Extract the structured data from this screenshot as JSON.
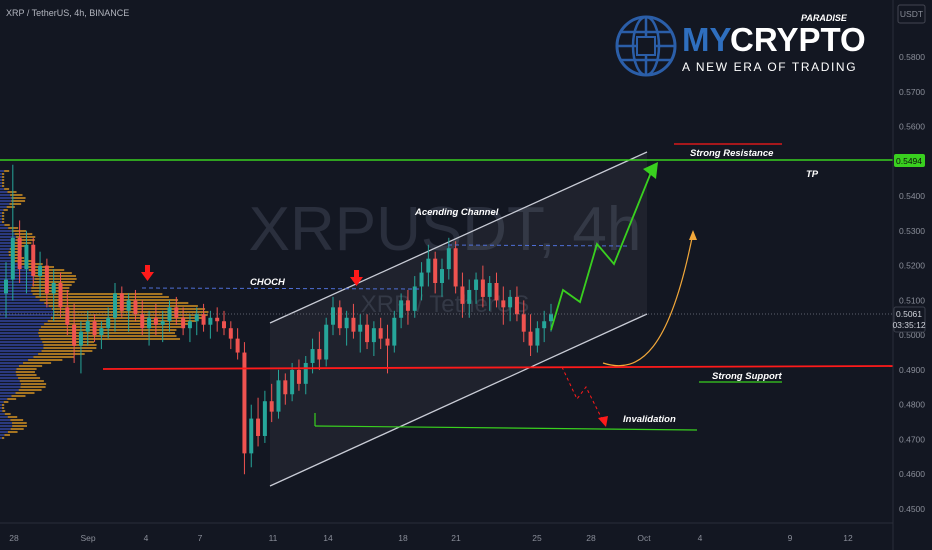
{
  "header": {
    "symbol_line": "XRP / TetherUS, 4h, BINANCE"
  },
  "watermark": {
    "big": "XRPUSDT, 4h",
    "small": "XRP / TetherUS"
  },
  "logo": {
    "top": "PARADISE",
    "my": "MY",
    "crypto": "CRYPTO",
    "tagline": "A NEW ERA OF TRADING"
  },
  "price_axis": {
    "currency": "USDT",
    "ticks": [
      "0.5800",
      "0.5700",
      "0.5600",
      "0.5400",
      "0.5300",
      "0.5200",
      "0.5100",
      "0.5000",
      "0.4900",
      "0.4800",
      "0.4700",
      "0.4600",
      "0.4500"
    ]
  },
  "last_price": {
    "value": "0.5061",
    "countdown": "03:35:12"
  },
  "tp_price": {
    "value": "0.5494"
  },
  "time_axis": {
    "ticks": [
      "28",
      "Sep",
      "4",
      "7",
      "11",
      "14",
      "18",
      "21",
      "25",
      "28",
      "Oct",
      "4",
      "9",
      "12"
    ]
  },
  "annotations": {
    "choch": "CHOCH",
    "channel": "Acending Channel",
    "resistance": "Strong Resistance",
    "tp": "TP",
    "support": "Strong Support",
    "invalidation": "Invalidation"
  },
  "colors": {
    "up": "#26a69a",
    "down": "#ef5350",
    "green_line": "#39d01f",
    "red_line": "#ff1a1a",
    "orange": "#f2a83a",
    "bg": "#131722"
  },
  "chart_data": {
    "type": "candlestick",
    "symbol": "XRP / TetherUS",
    "interval": "4h",
    "exchange": "BINANCE",
    "ylim": [
      0.445,
      0.59
    ],
    "levels": {
      "strong_resistance": 0.5494,
      "strong_support": 0.491,
      "last_price": 0.5061,
      "invalidation": 0.474
    },
    "ohlc": [
      [
        0.512,
        0.521,
        0.505,
        0.516
      ],
      [
        0.516,
        0.549,
        0.51,
        0.528
      ],
      [
        0.528,
        0.533,
        0.515,
        0.519
      ],
      [
        0.519,
        0.53,
        0.512,
        0.526
      ],
      [
        0.526,
        0.528,
        0.514,
        0.517
      ],
      [
        0.517,
        0.524,
        0.511,
        0.52
      ],
      [
        0.52,
        0.522,
        0.508,
        0.512
      ],
      [
        0.512,
        0.519,
        0.504,
        0.515
      ],
      [
        0.515,
        0.518,
        0.505,
        0.508
      ],
      [
        0.508,
        0.513,
        0.5,
        0.503
      ],
      [
        0.503,
        0.509,
        0.492,
        0.497
      ],
      [
        0.497,
        0.504,
        0.489,
        0.501
      ],
      [
        0.501,
        0.507,
        0.497,
        0.504
      ],
      [
        0.504,
        0.506,
        0.498,
        0.5
      ],
      [
        0.5,
        0.504,
        0.496,
        0.502
      ],
      [
        0.502,
        0.508,
        0.499,
        0.505
      ],
      [
        0.505,
        0.515,
        0.501,
        0.512
      ],
      [
        0.512,
        0.514,
        0.505,
        0.507
      ],
      [
        0.507,
        0.512,
        0.501,
        0.51
      ],
      [
        0.51,
        0.513,
        0.504,
        0.506
      ],
      [
        0.506,
        0.51,
        0.5,
        0.502
      ],
      [
        0.502,
        0.507,
        0.497,
        0.505
      ],
      [
        0.505,
        0.509,
        0.5,
        0.503
      ],
      [
        0.503,
        0.507,
        0.498,
        0.504
      ],
      [
        0.504,
        0.51,
        0.501,
        0.508
      ],
      [
        0.508,
        0.511,
        0.503,
        0.505
      ],
      [
        0.505,
        0.508,
        0.5,
        0.502
      ],
      [
        0.502,
        0.506,
        0.498,
        0.504
      ],
      [
        0.504,
        0.508,
        0.5,
        0.506
      ],
      [
        0.506,
        0.509,
        0.501,
        0.503
      ],
      [
        0.503,
        0.507,
        0.499,
        0.505
      ],
      [
        0.505,
        0.508,
        0.501,
        0.504
      ],
      [
        0.504,
        0.507,
        0.5,
        0.502
      ],
      [
        0.502,
        0.504,
        0.496,
        0.499
      ],
      [
        0.499,
        0.502,
        0.493,
        0.495
      ],
      [
        0.495,
        0.498,
        0.46,
        0.466
      ],
      [
        0.466,
        0.48,
        0.462,
        0.476
      ],
      [
        0.476,
        0.482,
        0.468,
        0.471
      ],
      [
        0.471,
        0.484,
        0.469,
        0.481
      ],
      [
        0.481,
        0.486,
        0.475,
        0.478
      ],
      [
        0.478,
        0.49,
        0.476,
        0.487
      ],
      [
        0.487,
        0.489,
        0.48,
        0.483
      ],
      [
        0.483,
        0.492,
        0.481,
        0.49
      ],
      [
        0.49,
        0.493,
        0.484,
        0.486
      ],
      [
        0.486,
        0.494,
        0.483,
        0.492
      ],
      [
        0.492,
        0.499,
        0.489,
        0.496
      ],
      [
        0.496,
        0.501,
        0.49,
        0.493
      ],
      [
        0.493,
        0.505,
        0.491,
        0.503
      ],
      [
        0.503,
        0.511,
        0.5,
        0.508
      ],
      [
        0.508,
        0.51,
        0.5,
        0.502
      ],
      [
        0.502,
        0.507,
        0.497,
        0.505
      ],
      [
        0.505,
        0.509,
        0.499,
        0.501
      ],
      [
        0.501,
        0.506,
        0.495,
        0.503
      ],
      [
        0.503,
        0.506,
        0.496,
        0.498
      ],
      [
        0.498,
        0.504,
        0.494,
        0.502
      ],
      [
        0.502,
        0.505,
        0.496,
        0.499
      ],
      [
        0.499,
        0.503,
        0.489,
        0.497
      ],
      [
        0.497,
        0.507,
        0.495,
        0.505
      ],
      [
        0.505,
        0.512,
        0.502,
        0.51
      ],
      [
        0.51,
        0.513,
        0.503,
        0.507
      ],
      [
        0.507,
        0.517,
        0.505,
        0.514
      ],
      [
        0.514,
        0.521,
        0.51,
        0.518
      ],
      [
        0.518,
        0.526,
        0.514,
        0.522
      ],
      [
        0.522,
        0.524,
        0.512,
        0.515
      ],
      [
        0.515,
        0.522,
        0.511,
        0.519
      ],
      [
        0.519,
        0.528,
        0.516,
        0.525
      ],
      [
        0.525,
        0.527,
        0.512,
        0.514
      ],
      [
        0.514,
        0.518,
        0.505,
        0.509
      ],
      [
        0.509,
        0.516,
        0.505,
        0.513
      ],
      [
        0.513,
        0.518,
        0.509,
        0.516
      ],
      [
        0.516,
        0.52,
        0.508,
        0.511
      ],
      [
        0.511,
        0.517,
        0.507,
        0.515
      ],
      [
        0.515,
        0.518,
        0.508,
        0.51
      ],
      [
        0.51,
        0.514,
        0.503,
        0.508
      ],
      [
        0.508,
        0.513,
        0.504,
        0.511
      ],
      [
        0.511,
        0.514,
        0.504,
        0.506
      ],
      [
        0.506,
        0.51,
        0.498,
        0.501
      ],
      [
        0.501,
        0.506,
        0.494,
        0.497
      ],
      [
        0.497,
        0.504,
        0.495,
        0.502
      ],
      [
        0.502,
        0.507,
        0.498,
        0.504
      ],
      [
        0.504,
        0.509,
        0.501,
        0.506
      ]
    ]
  }
}
